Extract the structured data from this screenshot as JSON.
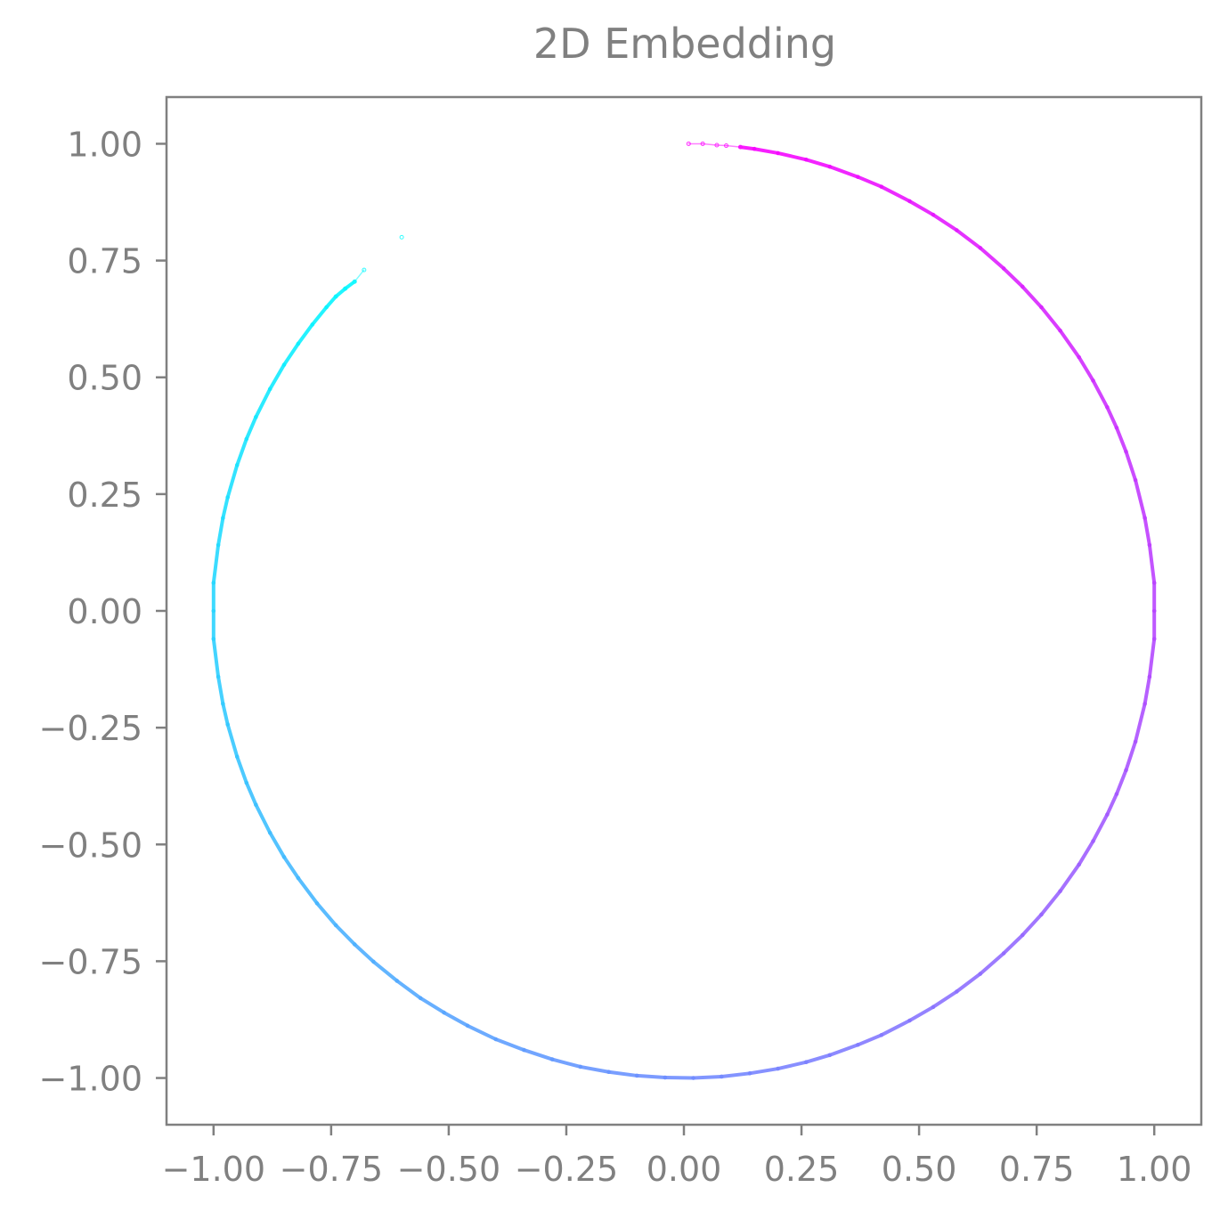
{
  "chart_data": {
    "type": "scatter",
    "title": "2D Embedding",
    "xlabel": "",
    "ylabel": "",
    "xlim": [
      -1.1,
      1.1
    ],
    "ylim": [
      -1.1,
      1.1
    ],
    "grid": false,
    "legend": "none",
    "x_ticks": [
      "−1.00",
      "−0.75",
      "−0.50",
      "−0.25",
      "0.00",
      "0.25",
      "0.50",
      "0.75",
      "1.00"
    ],
    "x_tick_values": [
      -1.0,
      -0.75,
      -0.5,
      -0.25,
      0.0,
      0.25,
      0.5,
      0.75,
      1.0
    ],
    "y_ticks": [
      "1.00",
      "0.75",
      "0.50",
      "0.25",
      "0.00",
      "−0.25",
      "−0.50",
      "−0.75",
      "−1.00"
    ],
    "y_tick_values": [
      1.0,
      0.75,
      0.5,
      0.25,
      0.0,
      -0.25,
      -0.5,
      -0.75,
      -1.0
    ],
    "colors": {
      "start": "#ff00ff",
      "end": "#00ffff",
      "axis": "#808080"
    },
    "series": [
      {
        "points": [
          [
            0.01,
            1.0
          ],
          [
            0.04,
            1.0
          ],
          [
            0.07,
            0.997
          ],
          [
            0.09,
            0.996
          ],
          [
            0.12,
            0.993
          ],
          [
            0.15,
            0.989
          ],
          [
            0.2,
            0.98
          ],
          [
            0.26,
            0.966
          ],
          [
            0.31,
            0.951
          ],
          [
            0.37,
            0.929
          ],
          [
            0.42,
            0.908
          ],
          [
            0.48,
            0.877
          ],
          [
            0.53,
            0.848
          ],
          [
            0.58,
            0.815
          ],
          [
            0.63,
            0.777
          ],
          [
            0.68,
            0.733
          ],
          [
            0.72,
            0.694
          ],
          [
            0.76,
            0.65
          ],
          [
            0.8,
            0.6
          ],
          [
            0.84,
            0.543
          ],
          [
            0.87,
            0.493
          ],
          [
            0.9,
            0.436
          ],
          [
            0.92,
            0.392
          ],
          [
            0.94,
            0.341
          ],
          [
            0.96,
            0.28
          ],
          [
            0.98,
            0.199
          ],
          [
            0.99,
            0.141
          ],
          [
            1.0,
            0.06
          ],
          [
            1.0,
            0.0
          ],
          [
            1.0,
            -0.06
          ],
          [
            0.99,
            -0.141
          ],
          [
            0.98,
            -0.199
          ],
          [
            0.96,
            -0.28
          ],
          [
            0.94,
            -0.341
          ],
          [
            0.92,
            -0.392
          ],
          [
            0.9,
            -0.436
          ],
          [
            0.87,
            -0.493
          ],
          [
            0.84,
            -0.543
          ],
          [
            0.8,
            -0.6
          ],
          [
            0.76,
            -0.65
          ],
          [
            0.72,
            -0.694
          ],
          [
            0.68,
            -0.733
          ],
          [
            0.63,
            -0.777
          ],
          [
            0.58,
            -0.815
          ],
          [
            0.53,
            -0.848
          ],
          [
            0.48,
            -0.877
          ],
          [
            0.42,
            -0.908
          ],
          [
            0.37,
            -0.929
          ],
          [
            0.31,
            -0.951
          ],
          [
            0.26,
            -0.966
          ],
          [
            0.2,
            -0.98
          ],
          [
            0.14,
            -0.99
          ],
          [
            0.08,
            -0.997
          ],
          [
            0.02,
            -1.0
          ],
          [
            -0.04,
            -0.999
          ],
          [
            -0.1,
            -0.995
          ],
          [
            -0.16,
            -0.987
          ],
          [
            -0.22,
            -0.976
          ],
          [
            -0.28,
            -0.96
          ],
          [
            -0.34,
            -0.94
          ],
          [
            -0.4,
            -0.917
          ],
          [
            -0.46,
            -0.888
          ],
          [
            -0.51,
            -0.86
          ],
          [
            -0.56,
            -0.829
          ],
          [
            -0.61,
            -0.792
          ],
          [
            -0.66,
            -0.751
          ],
          [
            -0.7,
            -0.714
          ],
          [
            -0.74,
            -0.673
          ],
          [
            -0.78,
            -0.626
          ],
          [
            -0.82,
            -0.572
          ],
          [
            -0.85,
            -0.527
          ],
          [
            -0.88,
            -0.475
          ],
          [
            -0.91,
            -0.415
          ],
          [
            -0.93,
            -0.368
          ],
          [
            -0.95,
            -0.312
          ],
          [
            -0.97,
            -0.243
          ],
          [
            -0.98,
            -0.199
          ],
          [
            -0.99,
            -0.141
          ],
          [
            -1.0,
            -0.06
          ],
          [
            -1.0,
            0.0
          ],
          [
            -1.0,
            0.06
          ],
          [
            -0.99,
            0.141
          ],
          [
            -0.98,
            0.199
          ],
          [
            -0.97,
            0.243
          ],
          [
            -0.95,
            0.312
          ],
          [
            -0.93,
            0.368
          ],
          [
            -0.91,
            0.415
          ],
          [
            -0.88,
            0.475
          ],
          [
            -0.85,
            0.527
          ],
          [
            -0.82,
            0.572
          ],
          [
            -0.79,
            0.613
          ],
          [
            -0.76,
            0.65
          ],
          [
            -0.74,
            0.673
          ],
          [
            -0.72,
            0.69
          ],
          [
            -0.7,
            0.705
          ],
          [
            -0.68,
            0.73
          ],
          [
            -0.6,
            0.8
          ]
        ]
      }
    ]
  }
}
